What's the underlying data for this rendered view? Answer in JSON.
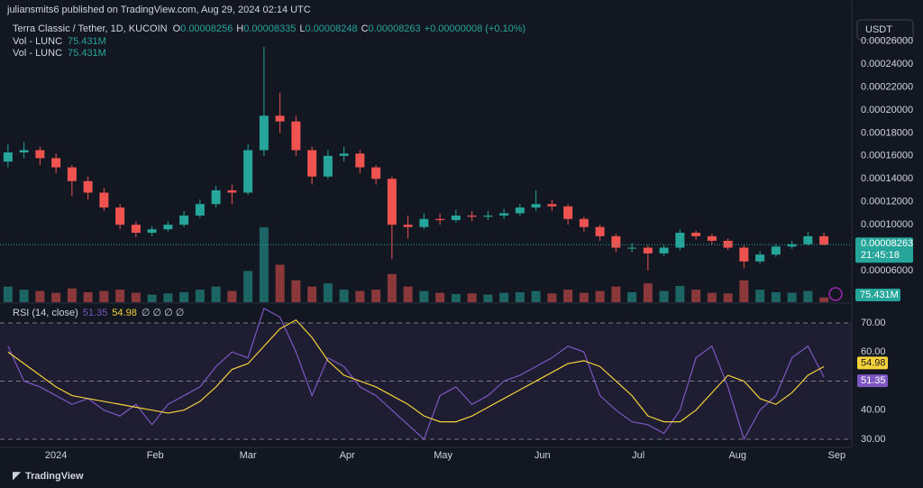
{
  "header": {
    "publisher": "juliansmits6 published on TradingView.com, Aug 29, 2024 02:14 UTC",
    "symbol": "Terra Classic / Tether, 1D, KUCOIN",
    "ohlc": [
      {
        "k": "O",
        "v": "0.00008256"
      },
      {
        "k": "H",
        "v": "0.00008335"
      },
      {
        "k": "L",
        "v": "0.00008248"
      },
      {
        "k": "C",
        "v": "0.00008263"
      }
    ],
    "change": "+0.00000008 (+0.10%)",
    "volume_legends": [
      {
        "name": "Vol - LUNC",
        "value": "75.431M"
      },
      {
        "name": "Vol - LUNC",
        "value": "75.431M"
      }
    ],
    "rsi_legend": "RSI (14, close)",
    "rsi_extra": "∅ ∅ ∅ ∅",
    "currency": "USDT",
    "brand": "TradingView"
  },
  "chart_data": [
    {
      "type": "candlestick",
      "x": [
        -15,
        -10,
        -5,
        0,
        5,
        10,
        15,
        20,
        25,
        30,
        35,
        40,
        45,
        50,
        55,
        60,
        65,
        70,
        75,
        80,
        85,
        90,
        95,
        100,
        105,
        110,
        115,
        120,
        125,
        130,
        135,
        140,
        145,
        150,
        155,
        160,
        165,
        170,
        175,
        180,
        185,
        190,
        195,
        200,
        205,
        210,
        215,
        220,
        225,
        230,
        235,
        240
      ],
      "open": [
        0.000155,
        0.000163,
        0.000165,
        0.000158,
        0.00015,
        0.000138,
        0.000128,
        0.000115,
        0.0001,
        9.3e-05,
        9.6e-05,
        0.0001,
        0.000108,
        0.000118,
        0.00013,
        0.000128,
        0.000165,
        0.000195,
        0.00019,
        0.000165,
        0.000142,
        0.00016,
        0.000162,
        0.00015,
        0.00014,
        0.0001,
        9.8e-05,
        0.000105,
        0.000104,
        0.000108,
        0.000107,
        0.000108,
        0.00011,
        0.000115,
        0.000118,
        0.000116,
        0.000105,
        9.8e-05,
        9e-05,
        8e-05,
        8e-05,
        7.5e-05,
        8e-05,
        9.3e-05,
        9e-05,
        8.6e-05,
        8e-05,
        6.8e-05,
        7.4e-05,
        8.1e-05,
        8.3e-05,
        9e-05
      ],
      "high": [
        0.00017,
        0.000172,
        0.000168,
        0.000162,
        0.000152,
        0.000142,
        0.000132,
        0.000118,
        0.000103,
        9.9e-05,
        0.000103,
        0.000112,
        0.000122,
        0.000134,
        0.000135,
        0.00017,
        0.000255,
        0.000215,
        0.000195,
        0.000168,
        0.000165,
        0.000168,
        0.000165,
        0.000152,
        0.000142,
        0.000108,
        0.00011,
        0.00011,
        0.000113,
        0.000112,
        0.000112,
        0.000114,
        0.000118,
        0.00013,
        0.000122,
        0.000118,
        0.000107,
        0.0001,
        9.2e-05,
        8.4e-05,
        8.2e-05,
        8.2e-05,
        9.6e-05,
        9.5e-05,
        9.2e-05,
        8.8e-05,
        8.2e-05,
        7.7e-05,
        8.3e-05,
        8.6e-05,
        9.4e-05,
        9.3e-05
      ],
      "low": [
        0.00015,
        0.000158,
        0.000152,
        0.000145,
        0.000125,
        0.000122,
        0.000112,
        9.6e-05,
        8.9e-05,
        9e-05,
        9.4e-05,
        9.8e-05,
        0.000106,
        0.000115,
        0.000118,
        0.000126,
        0.00016,
        0.00018,
        0.00016,
        0.000135,
        0.00014,
        0.000155,
        0.000145,
        0.000135,
        7e-05,
        8.8e-05,
        9.6e-05,
        0.0001,
        0.000102,
        0.000103,
        0.000104,
        0.000105,
        0.000108,
        0.000112,
        0.000112,
        0.0001,
        9.4e-05,
        8.6e-05,
        7.6e-05,
        7.6e-05,
        6e-05,
        7.3e-05,
        7.8e-05,
        8.7e-05,
        8.3e-05,
        7.8e-05,
        6.2e-05,
        6.6e-05,
        7.2e-05,
        7.9e-05,
        8.2e-05,
        8.2e-05
      ],
      "close": [
        0.000163,
        0.000165,
        0.000158,
        0.00015,
        0.000138,
        0.000128,
        0.000115,
        0.0001,
        9.3e-05,
        9.6e-05,
        0.0001,
        0.000108,
        0.000118,
        0.00013,
        0.000128,
        0.000165,
        0.000195,
        0.00019,
        0.000165,
        0.000142,
        0.00016,
        0.000162,
        0.00015,
        0.00014,
        0.0001,
        9.8e-05,
        0.000105,
        0.000104,
        0.000108,
        0.000107,
        0.000108,
        0.00011,
        0.000115,
        0.000118,
        0.000116,
        0.000105,
        9.8e-05,
        9e-05,
        8e-05,
        8e-05,
        7.5e-05,
        8e-05,
        9.3e-05,
        9e-05,
        8.6e-05,
        8e-05,
        6.8e-05,
        7.4e-05,
        8.1e-05,
        8.3e-05,
        9e-05,
        8.263e-05
      ],
      "ylim": [
        3.25e-05,
        0.0002644
      ],
      "yticks": [
        {
          "value": 6e-05,
          "label": "0.00006000"
        },
        {
          "value": 0.0001,
          "label": "0.00010000"
        },
        {
          "value": 0.00012,
          "label": "0.00012000"
        },
        {
          "value": 0.00014,
          "label": "0.00014000"
        },
        {
          "value": 0.00016,
          "label": "0.00016000"
        },
        {
          "value": 0.00018,
          "label": "0.00018000"
        },
        {
          "value": 0.0002,
          "label": "0.00020000"
        },
        {
          "value": 0.00022,
          "label": "0.00022000"
        },
        {
          "value": 0.00024,
          "label": "0.00024000"
        },
        {
          "value": 0.00026,
          "label": "0.00026000"
        }
      ],
      "xlim": [
        -17.5,
        248.7
      ],
      "xticks": [
        {
          "value": 0,
          "label": "2024"
        },
        {
          "value": 31,
          "label": "Feb"
        },
        {
          "value": 60,
          "label": "Mar"
        },
        {
          "value": 91,
          "label": "Apr"
        },
        {
          "value": 121,
          "label": "May"
        },
        {
          "value": 152,
          "label": "Jun"
        },
        {
          "value": 182,
          "label": "Jul"
        },
        {
          "value": 213,
          "label": "Aug"
        },
        {
          "value": 244,
          "label": "Sep"
        }
      ],
      "up_color": "#26a69a",
      "down_color": "#ef5350",
      "countdown": "21:45:18",
      "grid": false
    },
    {
      "type": "bar",
      "x": [
        -15,
        -10,
        -5,
        0,
        5,
        10,
        15,
        20,
        25,
        30,
        35,
        40,
        45,
        50,
        55,
        60,
        65,
        70,
        75,
        80,
        85,
        90,
        95,
        100,
        105,
        110,
        115,
        120,
        125,
        130,
        135,
        140,
        145,
        150,
        155,
        160,
        165,
        170,
        175,
        180,
        185,
        190,
        195,
        200,
        205,
        210,
        215,
        220,
        225,
        230,
        235,
        240
      ],
      "values": [
        250000000,
        200000000,
        180000000,
        150000000,
        220000000,
        160000000,
        180000000,
        200000000,
        150000000,
        120000000,
        140000000,
        160000000,
        200000000,
        250000000,
        180000000,
        500000000,
        1200000000,
        600000000,
        350000000,
        250000000,
        300000000,
        200000000,
        180000000,
        200000000,
        450000000,
        250000000,
        180000000,
        150000000,
        130000000,
        140000000,
        120000000,
        150000000,
        160000000,
        180000000,
        140000000,
        200000000,
        150000000,
        180000000,
        250000000,
        160000000,
        300000000,
        180000000,
        260000000,
        200000000,
        150000000,
        140000000,
        350000000,
        200000000,
        160000000,
        150000000,
        180000000,
        75431000
      ],
      "ylim": [
        0,
        1300000000
      ],
      "last_label": "75.431M"
    },
    {
      "type": "line",
      "x": [
        -15,
        -10,
        -5,
        0,
        5,
        10,
        15,
        20,
        25,
        30,
        35,
        40,
        45,
        50,
        55,
        60,
        65,
        70,
        75,
        80,
        85,
        90,
        95,
        100,
        105,
        110,
        115,
        120,
        125,
        130,
        135,
        140,
        145,
        150,
        155,
        160,
        165,
        170,
        175,
        180,
        185,
        190,
        195,
        200,
        205,
        210,
        215,
        220,
        225,
        230,
        235,
        240
      ],
      "series": [
        {
          "color": "#7e57c2",
          "values": [
            62,
            50,
            48,
            45,
            42,
            44,
            40,
            38,
            42,
            35,
            42,
            45,
            48,
            55,
            60,
            58,
            75,
            72,
            60,
            45,
            58,
            55,
            48,
            45,
            40,
            35,
            30,
            45,
            48,
            42,
            45,
            50,
            52,
            55,
            58,
            62,
            60,
            45,
            40,
            36,
            35,
            32,
            40,
            58,
            62,
            48,
            30,
            40,
            45,
            58,
            62,
            51.35
          ]
        },
        {
          "color": "#f5d13a",
          "values": [
            60,
            56,
            52,
            48,
            45,
            44,
            43,
            42,
            41,
            40,
            39,
            40,
            43,
            48,
            54,
            56,
            62,
            68,
            71,
            65,
            57,
            52,
            50,
            48,
            45,
            42,
            38,
            36,
            36,
            38,
            41,
            44,
            47,
            50,
            53,
            56,
            57,
            55,
            50,
            45,
            38,
            36,
            36,
            40,
            46,
            52,
            50,
            44,
            42,
            46,
            52,
            54.98
          ]
        }
      ],
      "ylim": [
        27.5,
        76.2
      ],
      "yticks": [
        {
          "value": 30,
          "label": "30.00"
        },
        {
          "value": 40,
          "label": "40.00"
        },
        {
          "value": 50,
          "label": "50.00"
        },
        {
          "value": 60,
          "label": "60.00"
        },
        {
          "value": 70,
          "label": "70.00"
        }
      ],
      "bands": [
        30,
        50,
        70
      ]
    }
  ]
}
